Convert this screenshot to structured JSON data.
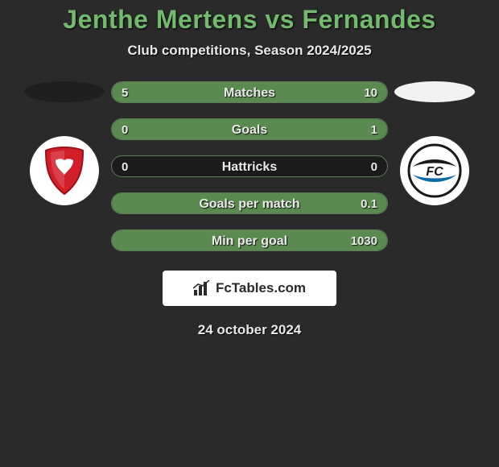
{
  "title": "Jenthe Mertens vs Fernandes",
  "title_color": "#73ba6f",
  "subtitle": "Club competitions, Season 2024/2025",
  "date": "24 october 2024",
  "background_color": "#2a2a2a",
  "bar_border_color": "#5d7d59",
  "bar_fill_color": "#5a8a4f",
  "bar_bg_color": "rgba(0,0,0,0.35)",
  "left_ellipse_color": "#1f1f1f",
  "right_ellipse_color": "#f2f2f2",
  "left_badge": {
    "name": "vaduz-crest",
    "shield_fill": "#d31f2a",
    "shield_stroke": "#9a0f18"
  },
  "right_badge": {
    "name": "fc-wil-crest",
    "ring_stroke": "#1a1a1a",
    "swoosh_top": "#1a1a1a",
    "swoosh_bottom": "#0a6aa8",
    "text": "FC"
  },
  "brand": {
    "icon_name": "bar-chart-icon",
    "text": "FcTables.com",
    "text_color": "#2a2a2a",
    "bg_color": "#ffffff"
  },
  "stats": [
    {
      "label": "Matches",
      "left_val": "5",
      "right_val": "10",
      "left_pct": 33,
      "right_pct": 67
    },
    {
      "label": "Goals",
      "left_val": "0",
      "right_val": "1",
      "left_pct": 0,
      "right_pct": 100
    },
    {
      "label": "Hattricks",
      "left_val": "0",
      "right_val": "0",
      "left_pct": 0,
      "right_pct": 0
    },
    {
      "label": "Goals per match",
      "left_val": "",
      "right_val": "0.1",
      "left_pct": 0,
      "right_pct": 100
    },
    {
      "label": "Min per goal",
      "left_val": "",
      "right_val": "1030",
      "left_pct": 0,
      "right_pct": 100
    }
  ]
}
